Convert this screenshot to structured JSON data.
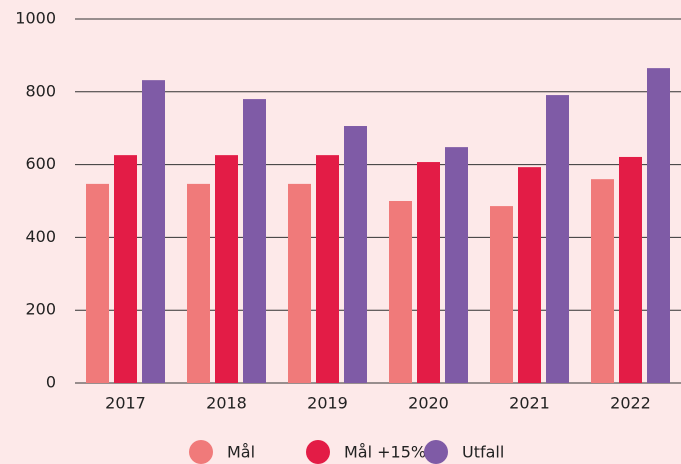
{
  "chart_data": {
    "type": "bar",
    "categories": [
      "2017",
      "2018",
      "2019",
      "2020",
      "2021",
      "2022"
    ],
    "series": [
      {
        "name": "Mål",
        "color": "#f07a7a",
        "values": [
          547,
          547,
          547,
          500,
          486,
          560
        ]
      },
      {
        "name": "Mål +15%",
        "color": "#e31c46",
        "values": [
          626,
          626,
          626,
          607,
          593,
          621
        ]
      },
      {
        "name": "Utfall",
        "color": "#7f5ba6",
        "values": [
          832,
          780,
          706,
          648,
          791,
          865
        ]
      }
    ],
    "ylim": [
      0,
      1000
    ],
    "yticks": [
      0,
      200,
      400,
      600,
      800,
      1000
    ],
    "grid": true,
    "legend": "bottom"
  }
}
